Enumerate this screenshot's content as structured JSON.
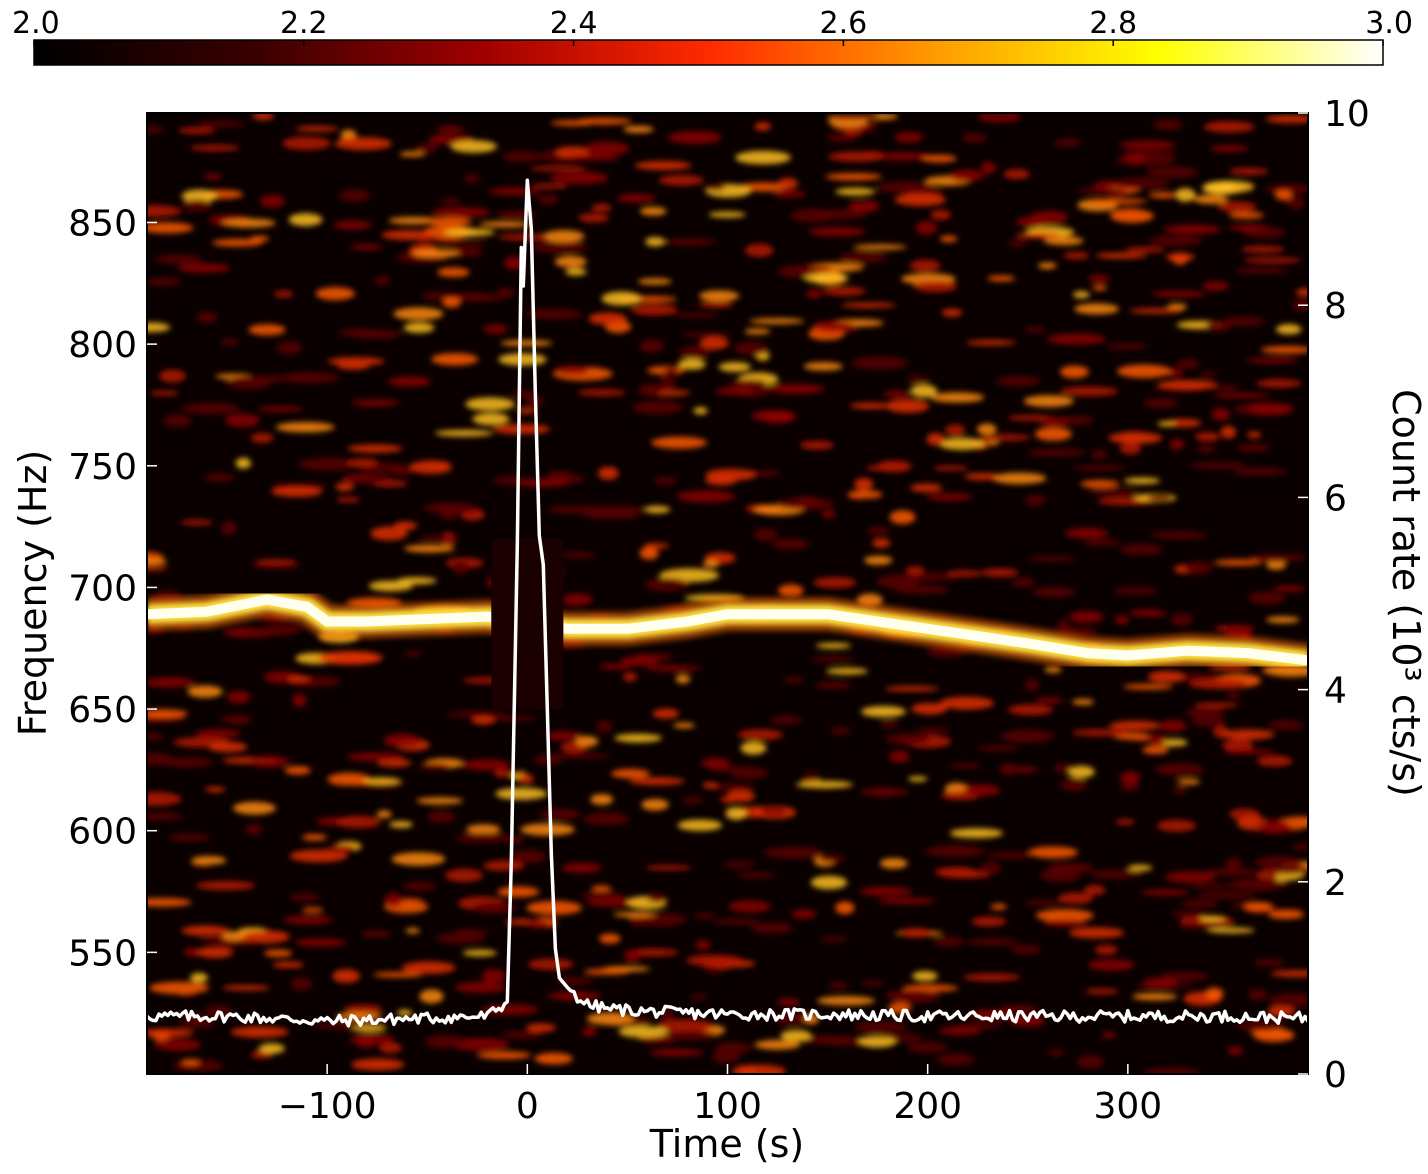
{
  "chart_data": {
    "type": "heatmap",
    "title": "",
    "xlabel": "Time (s)",
    "ylabel_left": "Frequency (Hz)",
    "ylabel_right": "Count rate (10³ cts/s)",
    "xlim": [
      -190,
      390
    ],
    "ylim_left": [
      500,
      895
    ],
    "ylim_right": [
      0,
      10
    ],
    "x_ticks": [
      {
        "value": -100,
        "label": "−100"
      },
      {
        "value": 0,
        "label": "0"
      },
      {
        "value": 100,
        "label": "100"
      },
      {
        "value": 200,
        "label": "200"
      },
      {
        "value": 300,
        "label": "300"
      }
    ],
    "y_left_ticks": [
      {
        "value": 550,
        "label": "550"
      },
      {
        "value": 600,
        "label": "600"
      },
      {
        "value": 650,
        "label": "650"
      },
      {
        "value": 700,
        "label": "700"
      },
      {
        "value": 750,
        "label": "750"
      },
      {
        "value": 800,
        "label": "800"
      },
      {
        "value": 850,
        "label": "850"
      }
    ],
    "y_right_ticks": [
      {
        "value": 0,
        "label": "0"
      },
      {
        "value": 2,
        "label": "2"
      },
      {
        "value": 4,
        "label": "4"
      },
      {
        "value": 6,
        "label": "6"
      },
      {
        "value": 8,
        "label": "8"
      },
      {
        "value": 10,
        "label": "10"
      }
    ],
    "colorbar": {
      "range": [
        2.0,
        3.0
      ],
      "ticks": [
        {
          "value": 2.0,
          "label": "2.0"
        },
        {
          "value": 2.2,
          "label": "2.2"
        },
        {
          "value": 2.4,
          "label": "2.4"
        },
        {
          "value": 2.6,
          "label": "2.6"
        },
        {
          "value": 2.8,
          "label": "2.8"
        },
        {
          "value": 3.0,
          "label": "3.0"
        }
      ],
      "colormap": "hot",
      "stops": [
        "#000000",
        "#3a0000",
        "#a00000",
        "#ff2a00",
        "#ff9a00",
        "#ffff00",
        "#ffffff"
      ]
    },
    "frequency_track": {
      "name": "burst oscillation frequency",
      "x": [
        -190,
        -160,
        -130,
        -110,
        -100,
        -80,
        -50,
        -20,
        20,
        50,
        80,
        100,
        150,
        200,
        250,
        280,
        300,
        330,
        360,
        390
      ],
      "y": [
        689,
        690,
        695,
        692,
        686,
        686,
        687,
        688,
        683,
        683,
        686,
        689,
        689,
        683,
        677,
        673,
        672,
        674,
        673,
        670
      ]
    },
    "light_curve": {
      "name": "count rate",
      "color": "#ffffff",
      "x": [
        -190,
        -150,
        -100,
        -50,
        -20,
        -10,
        -8,
        -5,
        -3,
        -2,
        0,
        2,
        4,
        6,
        8,
        10,
        12,
        14,
        16,
        20,
        25,
        30,
        40,
        60,
        100,
        150,
        200,
        250,
        300,
        350,
        390
      ],
      "y": [
        0.6,
        0.6,
        0.55,
        0.58,
        0.6,
        0.75,
        2.2,
        5.5,
        8.6,
        8.2,
        9.3,
        8.8,
        7.1,
        5.6,
        5.3,
        3.8,
        2.3,
        1.3,
        1.0,
        0.9,
        0.8,
        0.72,
        0.68,
        0.65,
        0.62,
        0.62,
        0.6,
        0.6,
        0.6,
        0.6,
        0.58
      ]
    }
  }
}
